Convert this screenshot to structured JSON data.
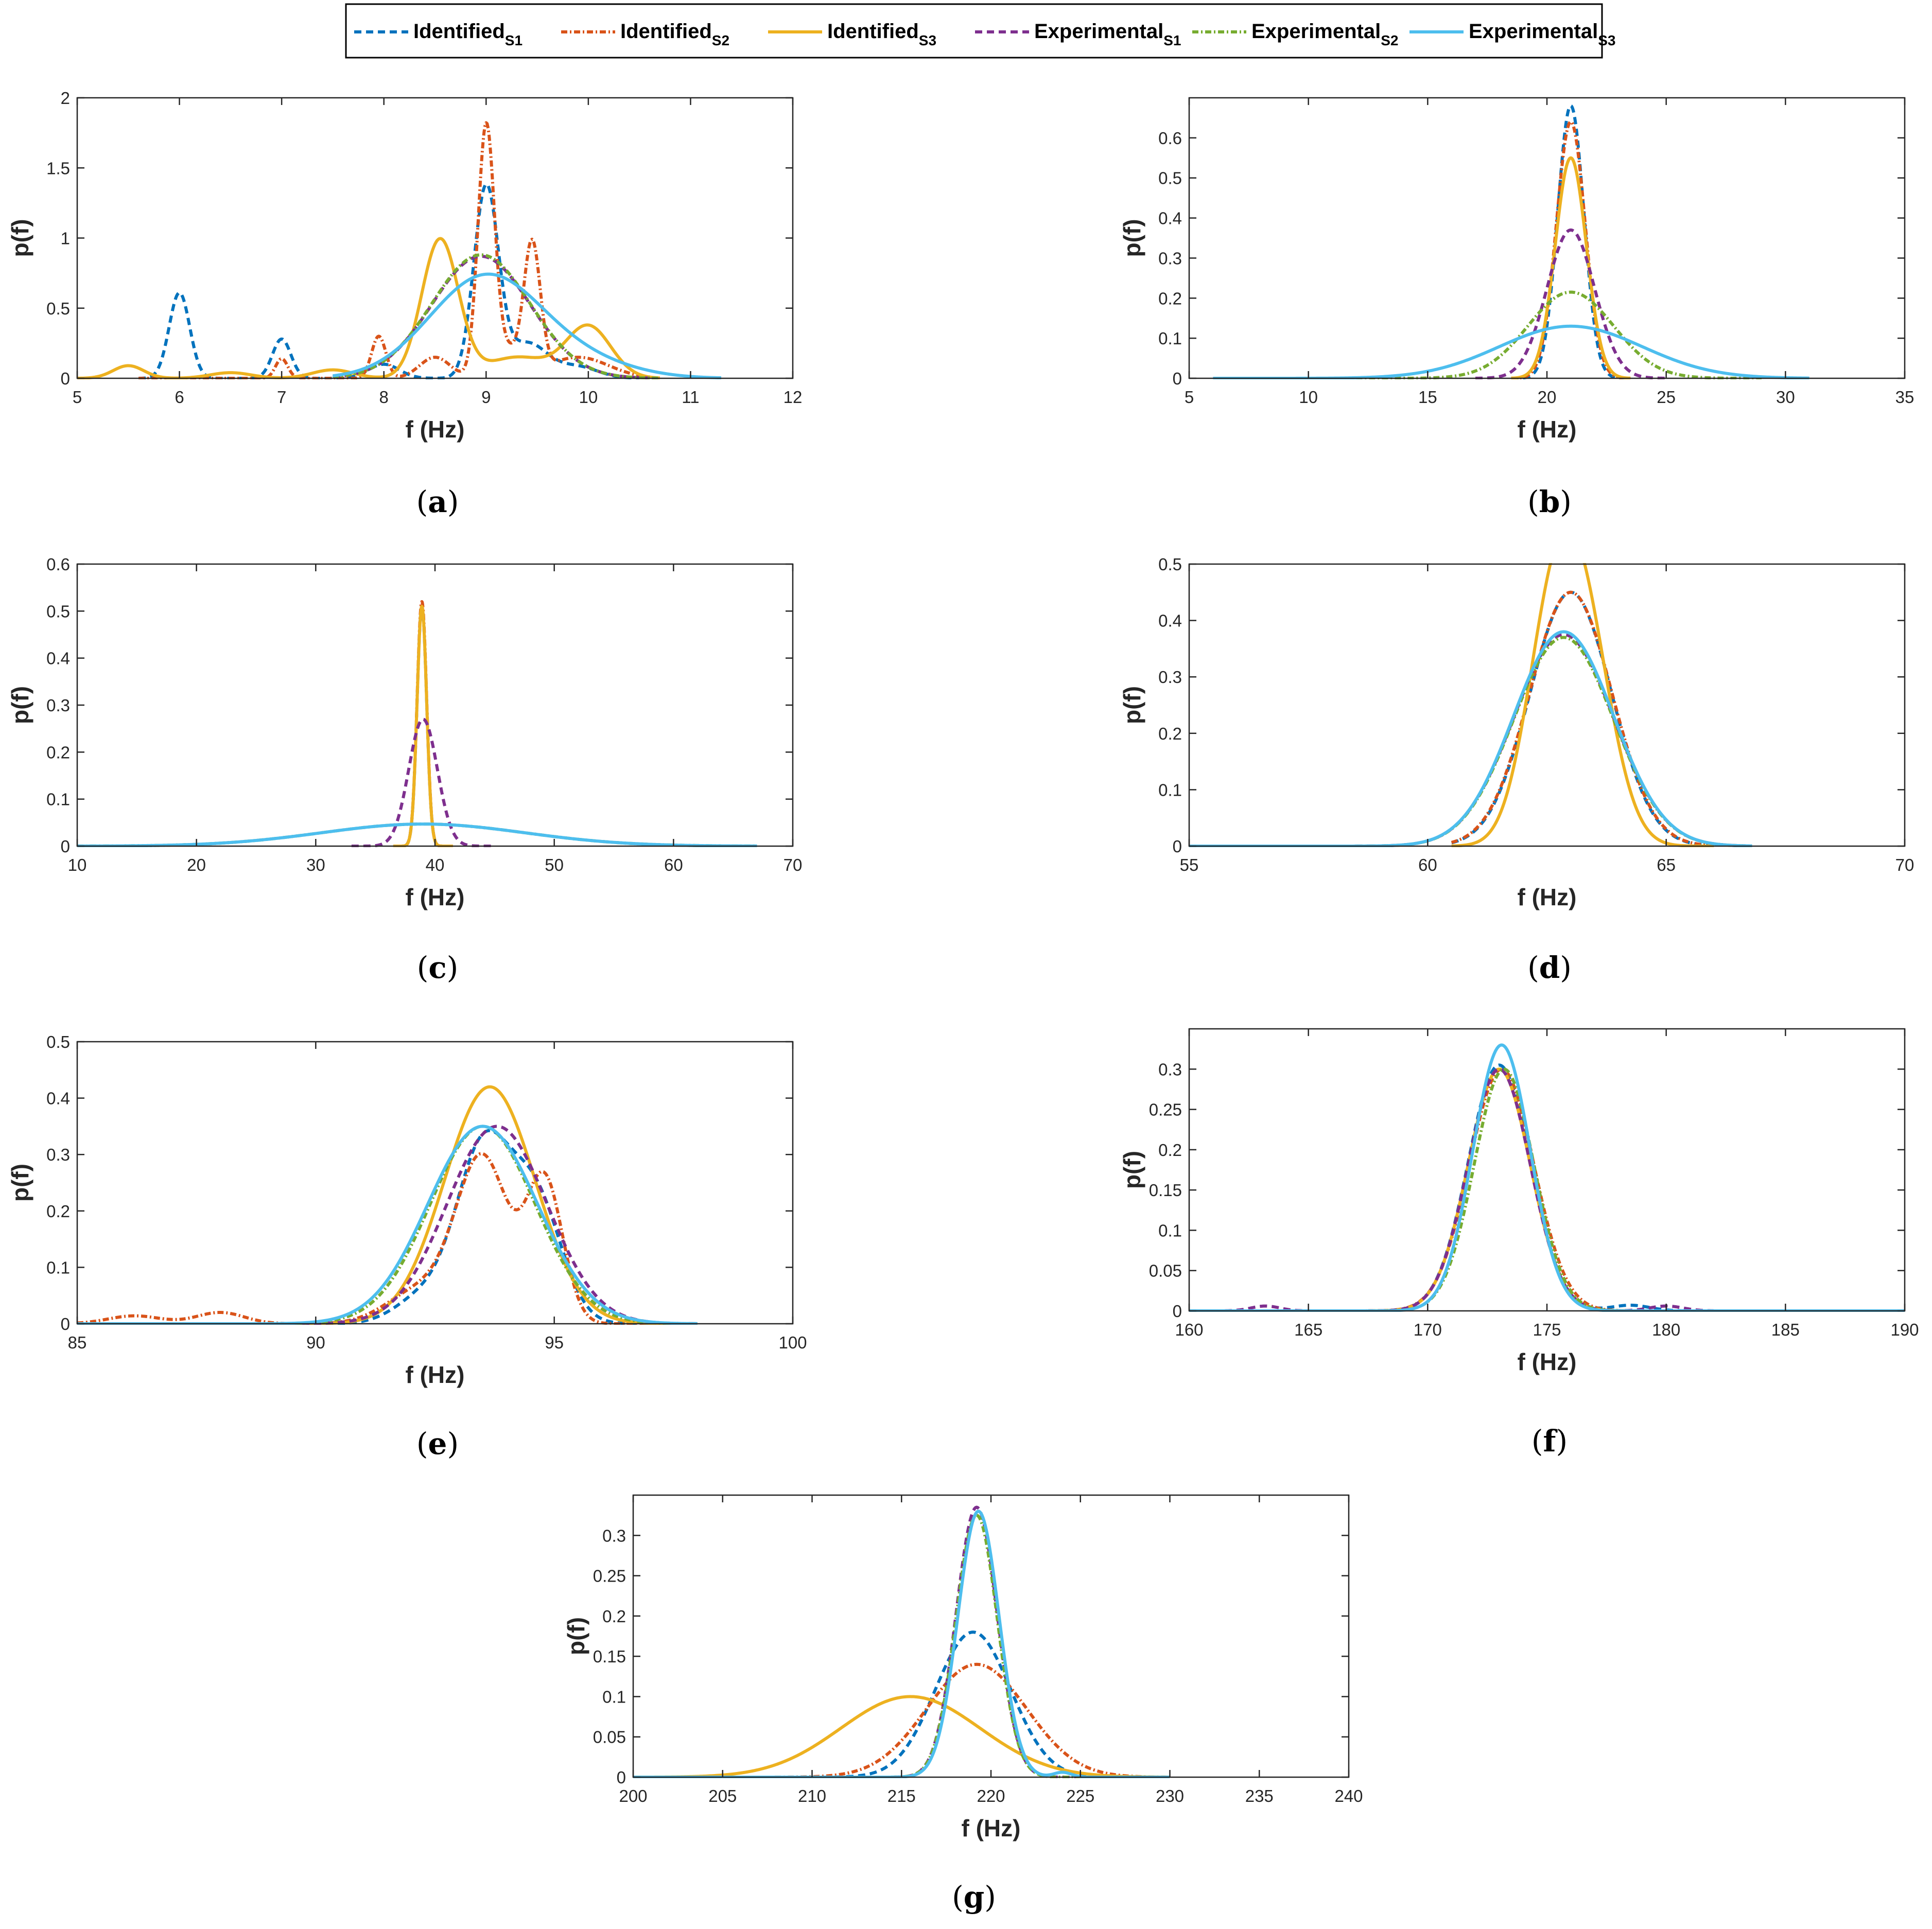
{
  "legend": {
    "entries": [
      {
        "name": "Identified",
        "sub": "S1",
        "color": "#0072BD",
        "dash": "14,9"
      },
      {
        "name": "Identified",
        "sub": "S2",
        "color": "#D95319",
        "dash": "12,5,3,5"
      },
      {
        "name": "Identified",
        "sub": "S3",
        "color": "#EDB120",
        "dash": ""
      },
      {
        "name": "Experimental",
        "sub": "S1",
        "color": "#7E2F8E",
        "dash": "14,9"
      },
      {
        "name": "Experimental",
        "sub": "S2",
        "color": "#77AC30",
        "dash": "12,5,3,5"
      },
      {
        "name": "Experimental",
        "sub": "S3",
        "color": "#4DBEEE",
        "dash": ""
      }
    ]
  },
  "chart_data": [
    {
      "id": "a",
      "caption": "(a)",
      "type": "line",
      "xlabel": "f (Hz)",
      "ylabel": "p(f)",
      "xlim": [
        5,
        12
      ],
      "ylim": [
        0,
        2
      ],
      "xticks": [
        5,
        6,
        7,
        8,
        9,
        10,
        11,
        12
      ],
      "yticks": [
        0,
        0.5,
        1,
        1.5,
        2
      ],
      "series": [
        {
          "name": "Identified_S1",
          "range": [
            5.6,
            10.5
          ],
          "baseline": 0,
          "components": [
            [
              6.0,
              0.1,
              0.61
            ],
            [
              7.0,
              0.09,
              0.28
            ],
            [
              8.0,
              0.15,
              0.1
            ],
            [
              9.0,
              0.12,
              1.35
            ],
            [
              9.4,
              0.2,
              0.25
            ],
            [
              9.9,
              0.2,
              0.08
            ]
          ]
        },
        {
          "name": "Identified_S2",
          "range": [
            5.6,
            10.6
          ],
          "baseline": 0,
          "components": [
            [
              7.0,
              0.06,
              0.14
            ],
            [
              7.95,
              0.07,
              0.3
            ],
            [
              8.5,
              0.15,
              0.15
            ],
            [
              9.0,
              0.08,
              1.77
            ],
            [
              9.2,
              0.12,
              0.2
            ],
            [
              9.45,
              0.08,
              0.92
            ],
            [
              9.9,
              0.3,
              0.15
            ]
          ]
        },
        {
          "name": "Identified_S3",
          "range": [
            5.0,
            10.7
          ],
          "baseline": 0,
          "components": [
            [
              5.5,
              0.15,
              0.09
            ],
            [
              6.5,
              0.2,
              0.04
            ],
            [
              7.5,
              0.2,
              0.06
            ],
            [
              8.55,
              0.18,
              0.99
            ],
            [
              9.3,
              0.3,
              0.15
            ],
            [
              10.0,
              0.22,
              0.37
            ]
          ]
        },
        {
          "name": "Experimental_S1",
          "range": [
            7.5,
            10.6
          ],
          "baseline": 0,
          "components": [
            [
              8.95,
              0.48,
              0.87
            ]
          ]
        },
        {
          "name": "Experimental_S2",
          "range": [
            7.5,
            10.7
          ],
          "baseline": 0,
          "components": [
            [
              8.95,
              0.48,
              0.88
            ]
          ]
        },
        {
          "name": "Experimental_S3",
          "range": [
            7.5,
            11.3
          ],
          "baseline": 0,
          "components": [
            [
              9.0,
              0.55,
              0.73
            ],
            [
              10.0,
              0.5,
              0.09
            ]
          ]
        }
      ]
    },
    {
      "id": "b",
      "caption": "(b)",
      "type": "line",
      "xlabel": "f (Hz)",
      "ylabel": "p(f)",
      "xlim": [
        5,
        35
      ],
      "ylim": [
        0,
        0.7
      ],
      "xticks": [
        5,
        10,
        15,
        20,
        25,
        30,
        35
      ],
      "yticks": [
        0,
        0.1,
        0.2,
        0.3,
        0.4,
        0.5,
        0.6
      ],
      "series": [
        {
          "name": "Identified_S1",
          "range": [
            18.5,
            23.5
          ],
          "baseline": 0,
          "components": [
            [
              21.0,
              0.55,
              0.68
            ]
          ]
        },
        {
          "name": "Identified_S2",
          "range": [
            18.5,
            23.5
          ],
          "baseline": 0,
          "components": [
            [
              21.0,
              0.6,
              0.64
            ]
          ]
        },
        {
          "name": "Identified_S3",
          "range": [
            18.5,
            23.5
          ],
          "baseline": 0,
          "components": [
            [
              21.0,
              0.65,
              0.55
            ]
          ]
        },
        {
          "name": "Experimental_S1",
          "range": [
            17.0,
            25.0
          ],
          "baseline": 0,
          "components": [
            [
              21.0,
              1.0,
              0.37
            ]
          ]
        },
        {
          "name": "Experimental_S2",
          "range": [
            12.0,
            29.0
          ],
          "baseline": 0,
          "components": [
            [
              21.0,
              1.8,
              0.215
            ]
          ]
        },
        {
          "name": "Experimental_S3",
          "range": [
            6.0,
            31.0
          ],
          "baseline": 0,
          "components": [
            [
              21.0,
              3.0,
              0.13
            ]
          ]
        }
      ]
    },
    {
      "id": "c",
      "caption": "(c)",
      "type": "line",
      "xlabel": "f (Hz)",
      "ylabel": "p(f)",
      "xlim": [
        10,
        70
      ],
      "ylim": [
        0,
        0.6
      ],
      "xticks": [
        10,
        20,
        30,
        40,
        50,
        60,
        70
      ],
      "yticks": [
        0,
        0.1,
        0.2,
        0.3,
        0.4,
        0.5,
        0.6
      ],
      "series": [
        {
          "name": "Identified_S1",
          "range": [
            36.5,
            41.5
          ],
          "baseline": 0,
          "components": [
            [
              38.9,
              0.4,
              0.51
            ]
          ]
        },
        {
          "name": "Identified_S2",
          "range": [
            36.5,
            41.5
          ],
          "baseline": 0,
          "components": [
            [
              38.9,
              0.4,
              0.52
            ]
          ]
        },
        {
          "name": "Identified_S3",
          "range": [
            36.5,
            41.5
          ],
          "baseline": 0,
          "components": [
            [
              38.9,
              0.4,
              0.51
            ]
          ]
        },
        {
          "name": "Experimental_S1",
          "range": [
            33.0,
            45.0
          ],
          "baseline": 0,
          "components": [
            [
              39.0,
              1.2,
              0.27
            ]
          ]
        },
        {
          "name": "Experimental_S2",
          "range": [
            10.0,
            67.0
          ],
          "baseline": 0,
          "components": [
            [
              39.0,
              8.5,
              0.047
            ]
          ]
        },
        {
          "name": "Experimental_S3",
          "range": [
            10.0,
            67.0
          ],
          "baseline": 0,
          "components": [
            [
              39.0,
              8.5,
              0.047
            ]
          ]
        }
      ]
    },
    {
      "id": "d",
      "caption": "(d)",
      "type": "line",
      "xlabel": "f (Hz)",
      "ylabel": "p(f)",
      "xlim": [
        55,
        70
      ],
      "ylim": [
        0,
        0.5
      ],
      "xticks": [
        55,
        60,
        65,
        70
      ],
      "yticks": [
        0,
        0.1,
        0.2,
        0.3,
        0.4,
        0.5
      ],
      "series": [
        {
          "name": "Identified_S1",
          "range": [
            60.5,
            66.0
          ],
          "baseline": 0,
          "components": [
            [
              63.0,
              0.85,
              0.45
            ]
          ]
        },
        {
          "name": "Identified_S2",
          "range": [
            60.5,
            66.0
          ],
          "baseline": 0,
          "components": [
            [
              63.0,
              0.86,
              0.45
            ]
          ]
        },
        {
          "name": "Identified_S3",
          "range": [
            60.5,
            66.0
          ],
          "baseline": 0,
          "components": [
            [
              62.55,
              0.55,
              0.3
            ],
            [
              63.25,
              0.6,
              0.38
            ]
          ]
        },
        {
          "name": "Experimental_S1",
          "range": [
            55.0,
            66.8
          ],
          "baseline": 0,
          "components": [
            [
              62.85,
              1.05,
              0.375
            ]
          ]
        },
        {
          "name": "Experimental_S2",
          "range": [
            55.0,
            66.8
          ],
          "baseline": 0,
          "components": [
            [
              62.85,
              1.05,
              0.37
            ]
          ]
        },
        {
          "name": "Experimental_S3",
          "range": [
            55.0,
            66.8
          ],
          "baseline": 0,
          "components": [
            [
              62.85,
              1.05,
              0.38
            ]
          ]
        }
      ]
    },
    {
      "id": "e",
      "caption": "(e)",
      "type": "line",
      "xlabel": "f (Hz)",
      "ylabel": "p(f)",
      "xlim": [
        85,
        100
      ],
      "ylim": [
        0,
        0.5
      ],
      "xticks": [
        85,
        90,
        95,
        100
      ],
      "yticks": [
        0,
        0.1,
        0.2,
        0.3,
        0.4,
        0.5
      ],
      "series": [
        {
          "name": "Identified_S1",
          "range": [
            85.0,
            98.0
          ],
          "baseline": 0,
          "components": [
            [
              93.5,
              0.55,
              0.3
            ],
            [
              94.6,
              0.55,
              0.22
            ],
            [
              92.3,
              0.6,
              0.05
            ]
          ]
        },
        {
          "name": "Identified_S2",
          "range": [
            85.0,
            98.0
          ],
          "baseline": 0,
          "components": [
            [
              86.2,
              0.55,
              0.014
            ],
            [
              88.0,
              0.5,
              0.02
            ],
            [
              93.5,
              0.55,
              0.29
            ],
            [
              94.8,
              0.38,
              0.25
            ],
            [
              92.2,
              0.7,
              0.06
            ]
          ]
        },
        {
          "name": "Identified_S3",
          "range": [
            85.0,
            98.0
          ],
          "baseline": 0,
          "components": [
            [
              93.65,
              0.95,
              0.42
            ]
          ]
        },
        {
          "name": "Experimental_S1",
          "range": [
            85.0,
            98.0
          ],
          "baseline": 0,
          "components": [
            [
              93.8,
              1.05,
              0.35
            ]
          ]
        },
        {
          "name": "Experimental_S2",
          "range": [
            85.0,
            98.0
          ],
          "baseline": 0,
          "components": [
            [
              93.5,
              1.1,
              0.35
            ]
          ]
        },
        {
          "name": "Experimental_S3",
          "range": [
            85.0,
            98.0
          ],
          "baseline": 0,
          "components": [
            [
              93.5,
              1.15,
              0.35
            ]
          ]
        }
      ]
    },
    {
      "id": "f",
      "caption": "(f)",
      "type": "line",
      "xlabel": "f (Hz)",
      "ylabel": "p(f)",
      "xlim": [
        160,
        190
      ],
      "ylim": [
        0,
        0.35
      ],
      "xticks": [
        160,
        165,
        170,
        175,
        180,
        185,
        190
      ],
      "yticks": [
        0,
        0.05,
        0.1,
        0.15,
        0.2,
        0.25,
        0.3
      ],
      "series": [
        {
          "name": "Identified_S1",
          "range": [
            160.0,
            182.0
          ],
          "baseline": 0,
          "components": [
            [
              173.0,
              1.3,
              0.305
            ],
            [
              178.5,
              0.8,
              0.007
            ]
          ]
        },
        {
          "name": "Identified_S2",
          "range": [
            160.0,
            182.0
          ],
          "baseline": 0,
          "components": [
            [
              173.1,
              1.35,
              0.3
            ]
          ]
        },
        {
          "name": "Identified_S3",
          "range": [
            160.0,
            182.0
          ],
          "baseline": 0,
          "components": [
            [
              173.0,
              1.3,
              0.3
            ]
          ]
        },
        {
          "name": "Experimental_S1",
          "range": [
            160.0,
            182.0
          ],
          "baseline": 0,
          "components": [
            [
              173.0,
              1.3,
              0.3
            ],
            [
              163.2,
              0.6,
              0.006
            ],
            [
              180.0,
              0.7,
              0.006
            ]
          ]
        },
        {
          "name": "Experimental_S2",
          "range": [
            160.0,
            190.0
          ],
          "baseline": 0,
          "components": [
            [
              173.2,
              1.25,
              0.3
            ]
          ]
        },
        {
          "name": "Experimental_S3",
          "range": [
            160.0,
            190.0
          ],
          "baseline": 0,
          "components": [
            [
              173.1,
              1.2,
              0.33
            ]
          ]
        }
      ]
    },
    {
      "id": "g",
      "caption": "(g)",
      "type": "line",
      "xlabel": "f (Hz)",
      "ylabel": "p(f)",
      "xlim": [
        200,
        240
      ],
      "ylim": [
        0,
        0.35
      ],
      "xticks": [
        200,
        205,
        210,
        215,
        220,
        225,
        230,
        235,
        240
      ],
      "yticks": [
        0,
        0.05,
        0.1,
        0.15,
        0.2,
        0.25,
        0.3
      ],
      "series": [
        {
          "name": "Identified_S1",
          "range": [
            200.0,
            230.0
          ],
          "baseline": 0,
          "components": [
            [
              219.0,
              2.1,
              0.18
            ]
          ]
        },
        {
          "name": "Identified_S2",
          "range": [
            200.0,
            230.0
          ],
          "baseline": 0,
          "components": [
            [
              219.2,
              2.8,
              0.14
            ]
          ]
        },
        {
          "name": "Identified_S3",
          "range": [
            200.0,
            230.0
          ],
          "baseline": 0,
          "components": [
            [
              215.5,
              3.9,
              0.1
            ]
          ]
        },
        {
          "name": "Experimental_S1",
          "range": [
            200.0,
            230.0
          ],
          "baseline": 0,
          "components": [
            [
              219.2,
              1.15,
              0.335
            ]
          ]
        },
        {
          "name": "Experimental_S2",
          "range": [
            200.0,
            230.0
          ],
          "baseline": 0,
          "components": [
            [
              219.2,
              1.15,
              0.325
            ]
          ]
        },
        {
          "name": "Experimental_S3",
          "range": [
            200.0,
            230.0
          ],
          "baseline": 0,
          "components": [
            [
              219.3,
              1.15,
              0.33
            ],
            [
              224.0,
              0.5,
              0.006
            ]
          ]
        }
      ]
    }
  ]
}
